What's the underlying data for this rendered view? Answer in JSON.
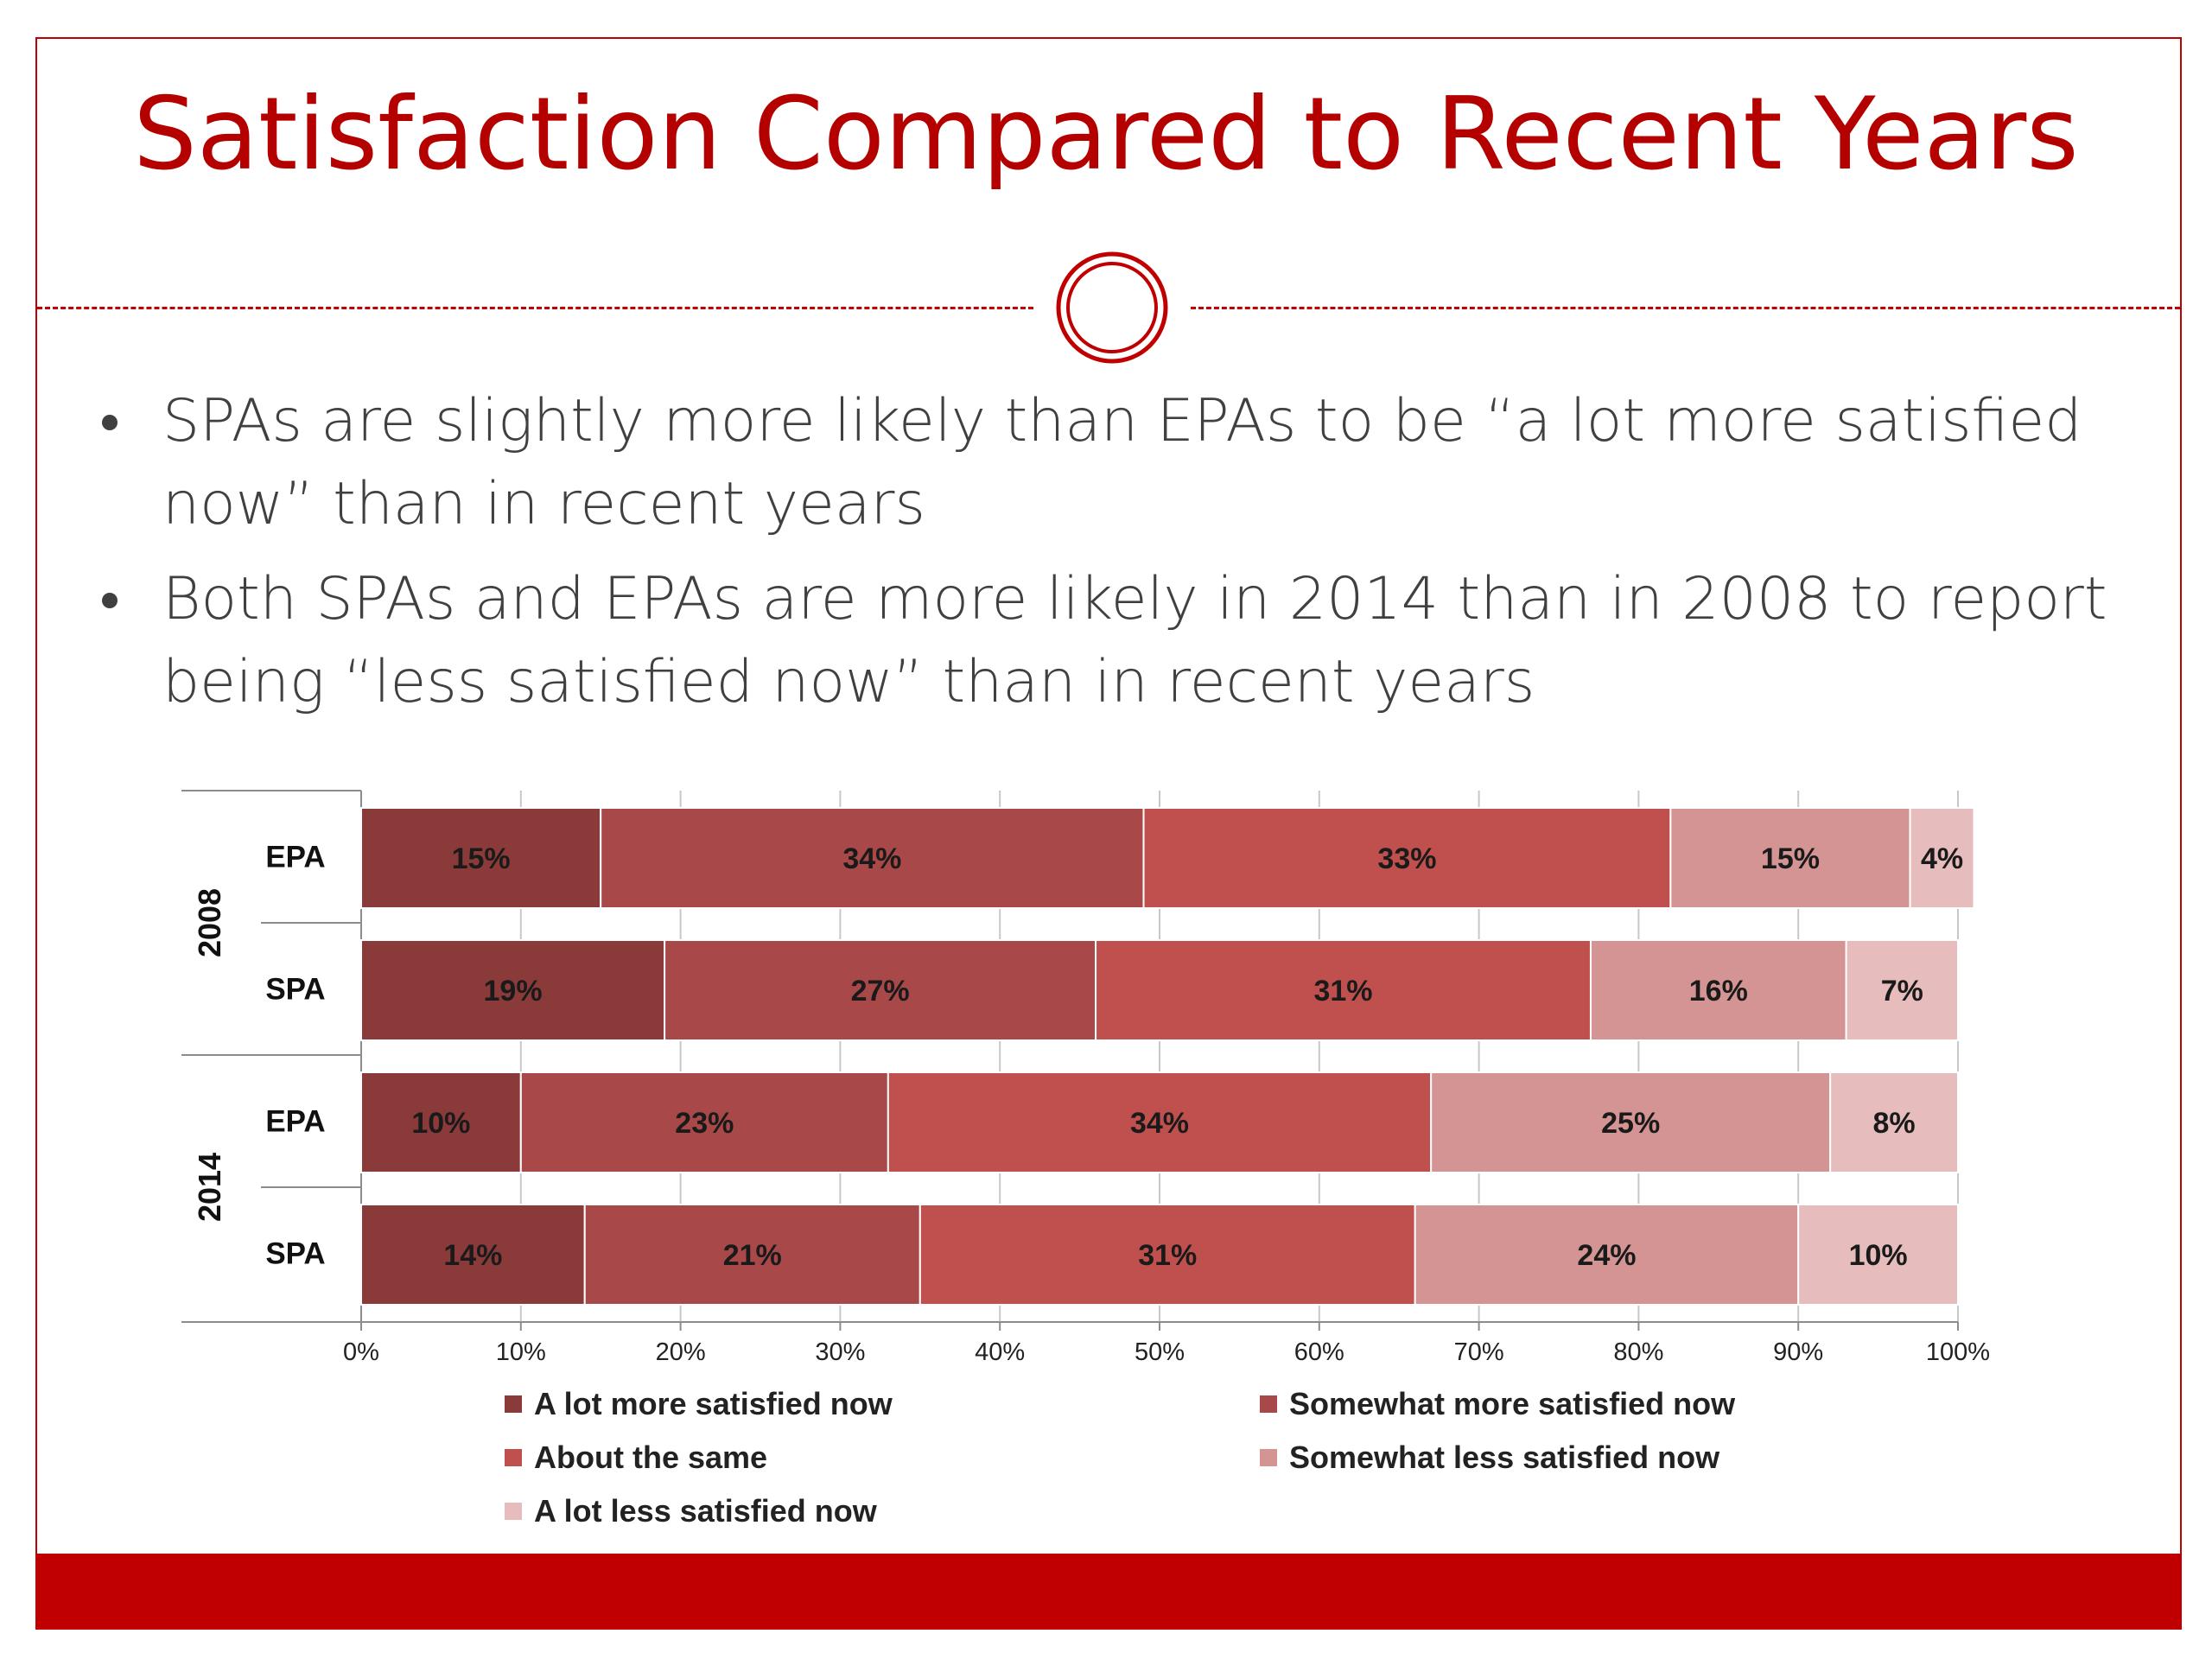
{
  "slide": {
    "title": "Satisfaction Compared to Recent Years",
    "bullets": [
      "SPAs are slightly more likely than EPAs to be “a lot more satisfied now” than in recent years",
      "Both SPAs and EPAs are more likely in 2014 than in 2008 to report being “less satisfied now” than in recent years"
    ],
    "accent_color": "#c00000",
    "text_color": "#404040"
  },
  "chart_data": {
    "type": "bar",
    "orientation": "horizontal",
    "stacked": "percent",
    "groups": [
      {
        "label": "2008",
        "categories": [
          "EPA",
          "SPA"
        ]
      },
      {
        "label": "2014",
        "categories": [
          "EPA",
          "SPA"
        ]
      }
    ],
    "series": [
      {
        "name": "A lot more satisfied now",
        "color": "#8b3a3a",
        "values": [
          15,
          19,
          10,
          14
        ],
        "labels": [
          "15%",
          "19%",
          "10%",
          "14%"
        ]
      },
      {
        "name": "Somewhat more satisfied now",
        "color": "#a84848",
        "values": [
          34,
          27,
          23,
          21
        ],
        "labels": [
          "34%",
          "27%",
          "23%",
          "21%"
        ]
      },
      {
        "name": "About the same",
        "color": "#c0504d",
        "values": [
          33,
          31,
          34,
          31
        ],
        "labels": [
          "33%",
          "31%",
          "34%",
          "31%"
        ]
      },
      {
        "name": "Somewhat less satisfied now",
        "color": "#d49494",
        "values": [
          15,
          16,
          25,
          24
        ],
        "labels": [
          "15%",
          "16%",
          "25%",
          "24%"
        ]
      },
      {
        "name": "A lot less satisfied now",
        "color": "#e6bcbc",
        "values": [
          4,
          7,
          8,
          10
        ],
        "labels": [
          "4%",
          "7%",
          "8%",
          "10%"
        ]
      }
    ],
    "xlim": [
      0,
      100
    ],
    "xticks": [
      "0%",
      "10%",
      "20%",
      "30%",
      "40%",
      "50%",
      "60%",
      "70%",
      "80%",
      "90%",
      "100%"
    ],
    "grid": true,
    "legend_position": "bottom"
  }
}
